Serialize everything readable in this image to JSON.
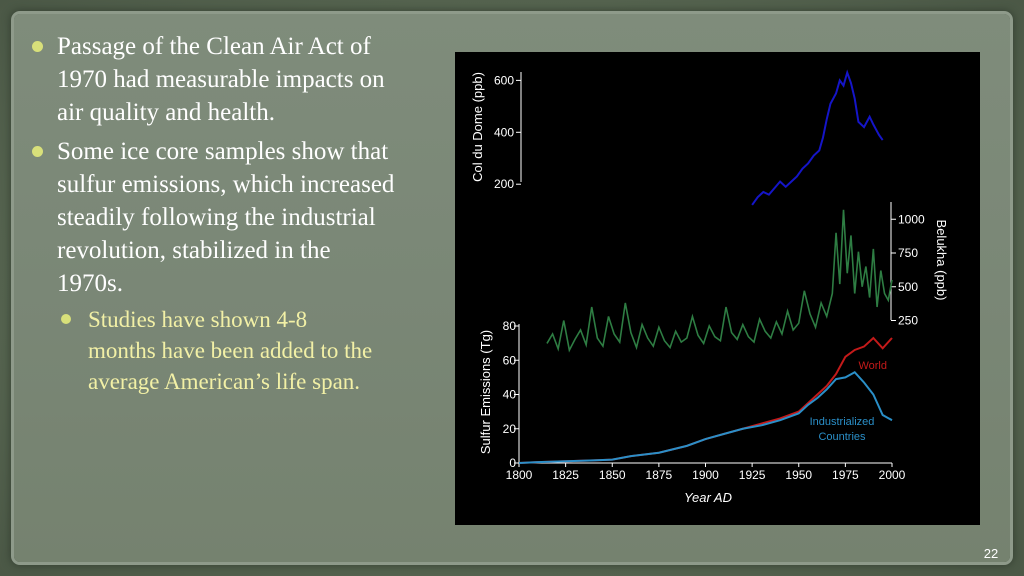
{
  "bullets": [
    {
      "text": "Passage of the Clean Air Act of 1970 had measurable impacts on air quality and health."
    },
    {
      "text": "Some ice core samples show that sulfur emissions, which increased steadily following the industrial revolution, stabilized in the 1970s.",
      "sub": "Studies have shown 4-8 months have been added to the average American’s life span."
    }
  ],
  "page_number": "22",
  "colors": {
    "col_du_dome": "#1515c8",
    "belukha": "#2e7d43",
    "world": "#c41a1a",
    "industrialized": "#2a8fc8",
    "bullet_text": "#ffffff",
    "sub_bullet_text": "#f2f0a6",
    "bullet_marker": "#d8e07a"
  },
  "chart_data": [
    {
      "type": "line",
      "ylabel": "Col du Dome (ppb)",
      "yticks": [
        200,
        400,
        600
      ],
      "ylim": [
        170,
        640
      ],
      "x": [
        1925,
        1928,
        1931,
        1934,
        1937,
        1940,
        1943,
        1946,
        1949,
        1952,
        1955,
        1958,
        1961,
        1963,
        1965,
        1967,
        1970,
        1972,
        1974,
        1976,
        1978,
        1980,
        1982,
        1985,
        1988,
        1990,
        1993,
        1995
      ],
      "series": [
        {
          "values": [
            120,
            150,
            170,
            160,
            185,
            210,
            190,
            210,
            230,
            260,
            280,
            310,
            330,
            380,
            450,
            510,
            550,
            600,
            580,
            630,
            590,
            530,
            440,
            420,
            460,
            430,
            390,
            370
          ]
        }
      ]
    },
    {
      "type": "line",
      "ylabel": "Belukha (ppb)",
      "yticks": [
        250,
        500,
        750,
        1000
      ],
      "ylim": [
        150,
        1150
      ],
      "y_axis_side": "right",
      "x": [
        1815,
        1818,
        1821,
        1824,
        1827,
        1830,
        1833,
        1836,
        1839,
        1842,
        1845,
        1848,
        1851,
        1854,
        1857,
        1860,
        1863,
        1866,
        1869,
        1872,
        1875,
        1878,
        1881,
        1884,
        1887,
        1890,
        1893,
        1896,
        1899,
        1902,
        1905,
        1908,
        1911,
        1914,
        1917,
        1920,
        1923,
        1926,
        1929,
        1932,
        1935,
        1938,
        1941,
        1944,
        1947,
        1950,
        1953,
        1956,
        1959,
        1962,
        1965,
        1968,
        1970,
        1972,
        1974,
        1976,
        1978,
        1980,
        1982,
        1984,
        1986,
        1988,
        1990,
        1992,
        1994,
        1996,
        1998,
        2000
      ],
      "series": [
        {
          "values": [
            80,
            150,
            40,
            250,
            30,
            110,
            180,
            70,
            350,
            120,
            60,
            280,
            150,
            90,
            380,
            160,
            50,
            220,
            120,
            60,
            200,
            100,
            50,
            170,
            90,
            120,
            280,
            140,
            80,
            210,
            130,
            100,
            350,
            160,
            110,
            220,
            130,
            90,
            260,
            170,
            120,
            240,
            150,
            320,
            180,
            230,
            470,
            300,
            200,
            380,
            280,
            450,
            900,
            520,
            1070,
            600,
            880,
            450,
            760,
            500,
            650,
            420,
            780,
            350,
            620,
            450,
            400,
            550
          ]
        }
      ]
    },
    {
      "type": "line",
      "xlabel": "Year AD",
      "ylabel": "Sulfur Emissions (Tg)",
      "xticks": [
        1800,
        1825,
        1850,
        1875,
        1900,
        1925,
        1950,
        1975,
        2000
      ],
      "yticks": [
        0,
        20,
        40,
        60,
        80
      ],
      "xlim": [
        1800,
        2000
      ],
      "ylim": [
        0,
        80
      ],
      "x": [
        1800,
        1810,
        1825,
        1840,
        1850,
        1860,
        1875,
        1890,
        1900,
        1910,
        1920,
        1930,
        1940,
        1950,
        1955,
        1960,
        1965,
        1970,
        1975,
        1980,
        1985,
        1990,
        1995,
        2000
      ],
      "series": [
        {
          "name": "World",
          "values": [
            0,
            0.5,
            1,
            1.5,
            2,
            4,
            6,
            10,
            14,
            17,
            20,
            23,
            26,
            30,
            35,
            40,
            45,
            52,
            62,
            66,
            68,
            73,
            67,
            73
          ]
        },
        {
          "name": "Industrialized Countries",
          "values": [
            0,
            0.5,
            1,
            1.5,
            2,
            4,
            6,
            10,
            14,
            17,
            20,
            22,
            25,
            29,
            34,
            38,
            43,
            49,
            50,
            53,
            47,
            40,
            28,
            25
          ]
        }
      ]
    }
  ]
}
